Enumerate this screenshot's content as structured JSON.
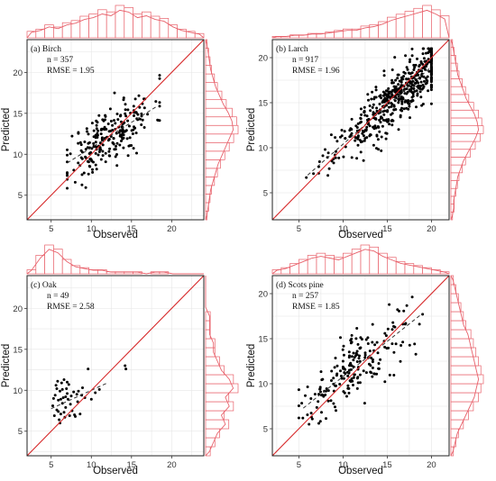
{
  "figure": {
    "width": 550,
    "height": 534,
    "line_color": "#d62728",
    "hist_color": "#e8606a",
    "point_color": "#000000"
  },
  "chart_data": [
    {
      "type": "scatter",
      "panel": "(a) Birch",
      "n_label": "n = 357",
      "rmse_label": "RMSE = 1.95",
      "xlabel": "Observed",
      "ylabel": "Predicted",
      "xlim": [
        2,
        24
      ],
      "ylim": [
        2,
        24
      ],
      "xticks": [
        5,
        10,
        15,
        20
      ],
      "yticks": [
        5,
        10,
        15,
        20
      ],
      "grid": true,
      "one_to_one_line": true,
      "fit_line": {
        "intercept": 4.6,
        "slope": 0.62,
        "x_range": [
          7,
          18
        ]
      },
      "obs_range": [
        7,
        18.5
      ],
      "obs_center": 12.3,
      "pred_center": 12.8,
      "scatter_spread": 1.8,
      "seed": 11,
      "draw_points": 230,
      "hist_top": [
        3,
        4,
        6,
        5,
        7,
        8,
        10,
        11,
        13,
        12,
        15,
        14,
        11,
        12,
        10,
        9,
        6,
        4,
        3,
        2
      ],
      "hist_right": [
        1,
        2,
        3,
        4,
        6,
        8,
        10,
        13,
        16,
        19,
        22,
        21,
        18,
        14,
        11,
        8,
        6,
        4,
        3,
        2,
        1
      ]
    },
    {
      "type": "scatter",
      "panel": "(b) Larch",
      "n_label": "n = 917",
      "rmse_label": "RMSE = 1.96",
      "xlabel": "Observed",
      "ylabel": "Predicted",
      "xlim": [
        2,
        22
      ],
      "ylim": [
        2,
        22
      ],
      "xticks": [
        5,
        10,
        15,
        20
      ],
      "yticks": [
        5,
        10,
        15,
        20
      ],
      "grid": true,
      "one_to_one_line": true,
      "fit_line": {
        "intercept": 1.8,
        "slope": 0.86,
        "x_range": [
          6,
          20
        ]
      },
      "obs_range": [
        5.5,
        20
      ],
      "obs_center": 16,
      "pred_center": 15,
      "scatter_spread": 1.5,
      "seed": 23,
      "draw_points": 520,
      "hist_top": [
        1,
        1,
        2,
        2,
        3,
        3,
        4,
        5,
        6,
        6,
        8,
        9,
        11,
        14,
        16,
        18,
        20,
        22,
        19,
        15
      ],
      "hist_right": [
        1,
        2,
        2,
        3,
        4,
        5,
        7,
        9,
        12,
        15,
        18,
        20,
        19,
        17,
        14,
        11,
        9,
        7,
        5,
        4,
        3,
        2,
        1
      ]
    },
    {
      "type": "scatter",
      "panel": "(c) Oak",
      "n_label": "n = 49",
      "rmse_label": "RMSE = 2.58",
      "xlabel": "Observed",
      "ylabel": "Predicted",
      "xlim": [
        2,
        24
      ],
      "ylim": [
        2,
        24
      ],
      "xticks": [
        5,
        10,
        15,
        20
      ],
      "yticks": [
        5,
        10,
        15,
        20
      ],
      "grid": true,
      "one_to_one_line": true,
      "fit_line": {
        "intercept": 5.5,
        "slope": 0.45,
        "x_range": [
          5,
          12
        ]
      },
      "points": [
        [
          5.2,
          8.1
        ],
        [
          5.4,
          6.9
        ],
        [
          5.5,
          9.4
        ],
        [
          5.6,
          10.6
        ],
        [
          5.7,
          7.6
        ],
        [
          5.8,
          11.1
        ],
        [
          5.9,
          8.8
        ],
        [
          6.0,
          6.4
        ],
        [
          6.1,
          9.9
        ],
        [
          6.2,
          7.1
        ],
        [
          6.3,
          10.9
        ],
        [
          6.4,
          8.4
        ],
        [
          6.5,
          9.1
        ],
        [
          6.6,
          11.3
        ],
        [
          6.7,
          6.7
        ],
        [
          6.8,
          7.9
        ],
        [
          6.9,
          10.2
        ],
        [
          7.0,
          9.6
        ],
        [
          7.1,
          8.9
        ],
        [
          7.2,
          10.7
        ],
        [
          7.3,
          6.9
        ],
        [
          7.5,
          9.3
        ],
        [
          7.6,
          7.5
        ],
        [
          7.8,
          9.8
        ],
        [
          8.0,
          6.8
        ],
        [
          8.2,
          9.5
        ],
        [
          8.4,
          9.9
        ],
        [
          8.6,
          7.1
        ],
        [
          8.9,
          10.3
        ],
        [
          9.2,
          9.1
        ],
        [
          9.6,
          12.6
        ],
        [
          10.0,
          8.9
        ],
        [
          10.5,
          9.7
        ],
        [
          11.0,
          10.1
        ],
        [
          14.2,
          13.0
        ],
        [
          14.3,
          12.6
        ],
        [
          5.3,
          9.0
        ],
        [
          6.4,
          10.1
        ],
        [
          7.4,
          8.3
        ],
        [
          6.2,
          8.9
        ],
        [
          5.9,
          7.4
        ],
        [
          6.8,
          9.2
        ],
        [
          7.9,
          7.0
        ],
        [
          8.3,
          8.6
        ],
        [
          6.6,
          7.3
        ],
        [
          5.7,
          10.2
        ],
        [
          7.0,
          11.0
        ],
        [
          6.1,
          6.0
        ],
        [
          8.8,
          9.4
        ]
      ],
      "hist_top": [
        2,
        9,
        14,
        12,
        7,
        4,
        3,
        2,
        2,
        1,
        1,
        1,
        1,
        0,
        1,
        1,
        0,
        0,
        0,
        0
      ],
      "hist_right": [
        1,
        2,
        3,
        5,
        4,
        6,
        5,
        7,
        6,
        4,
        3,
        2,
        2,
        1,
        1,
        1,
        0,
        0,
        0,
        0
      ]
    },
    {
      "type": "scatter",
      "panel": "(d) Scots pine",
      "n_label": "n = 257",
      "rmse_label": "RMSE = 1.85",
      "xlabel": "Observed",
      "ylabel": "Predicted",
      "xlim": [
        2,
        22
      ],
      "ylim": [
        2,
        22
      ],
      "xticks": [
        5,
        10,
        15,
        20
      ],
      "yticks": [
        5,
        10,
        15,
        20
      ],
      "grid": true,
      "one_to_one_line": true,
      "fit_line": {
        "intercept": 3.0,
        "slope": 0.78,
        "x_range": [
          5.5,
          19
        ]
      },
      "obs_range": [
        5,
        19
      ],
      "obs_center": 11.5,
      "pred_center": 11.8,
      "scatter_spread": 1.7,
      "seed": 41,
      "draw_points": 200,
      "hist_top": [
        2,
        3,
        5,
        7,
        9,
        10,
        9,
        8,
        10,
        12,
        14,
        13,
        10,
        8,
        6,
        5,
        4,
        3,
        2,
        1
      ],
      "hist_right": [
        1,
        2,
        3,
        5,
        7,
        9,
        11,
        12,
        13,
        12,
        11,
        10,
        9,
        8,
        6,
        5,
        4,
        3,
        2,
        1
      ]
    }
  ]
}
